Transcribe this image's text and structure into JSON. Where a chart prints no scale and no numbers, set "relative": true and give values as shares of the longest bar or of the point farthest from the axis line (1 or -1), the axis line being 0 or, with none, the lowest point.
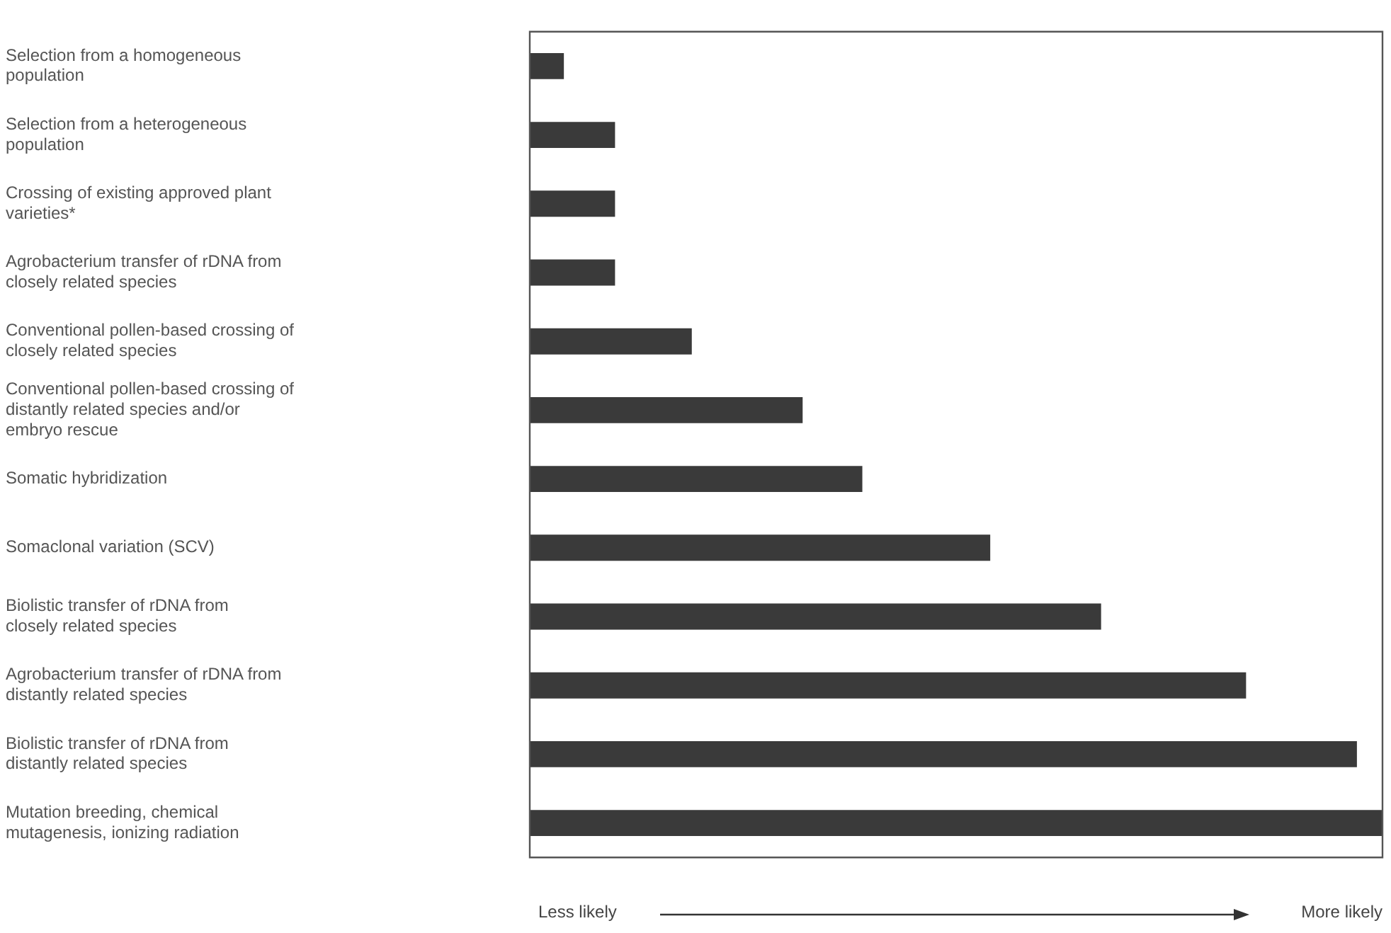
{
  "chart_data": {
    "type": "bar",
    "orientation": "horizontal",
    "relative": true,
    "categories": [
      "Selection from a homogeneous population",
      "Selection from a heterogeneous population",
      "Crossing of existing approved plant varieties*",
      "Agrobacterium transfer of rDNA from closely related species",
      "Conventional pollen-based crossing of closely related species",
      "Conventional pollen-based crossing of distantly related species and/or embryo rescue",
      "Somatic hybridization",
      "Somaclonal variation (SCV)",
      "Biolistic transfer of rDNA from closely related species",
      "Agrobacterium transfer of rDNA from distantly related species",
      "Biolistic transfer of rDNA from distantly related species",
      "Mutation breeding, chemical mutagenesis, ionizing radiation"
    ],
    "values": [
      0.04,
      0.1,
      0.1,
      0.1,
      0.19,
      0.32,
      0.39,
      0.54,
      0.67,
      0.84,
      0.97,
      1
    ],
    "color": "#3a3a3a",
    "annotations": [
      "Less likely",
      "More likely"
    ],
    "legend": false
  }
}
